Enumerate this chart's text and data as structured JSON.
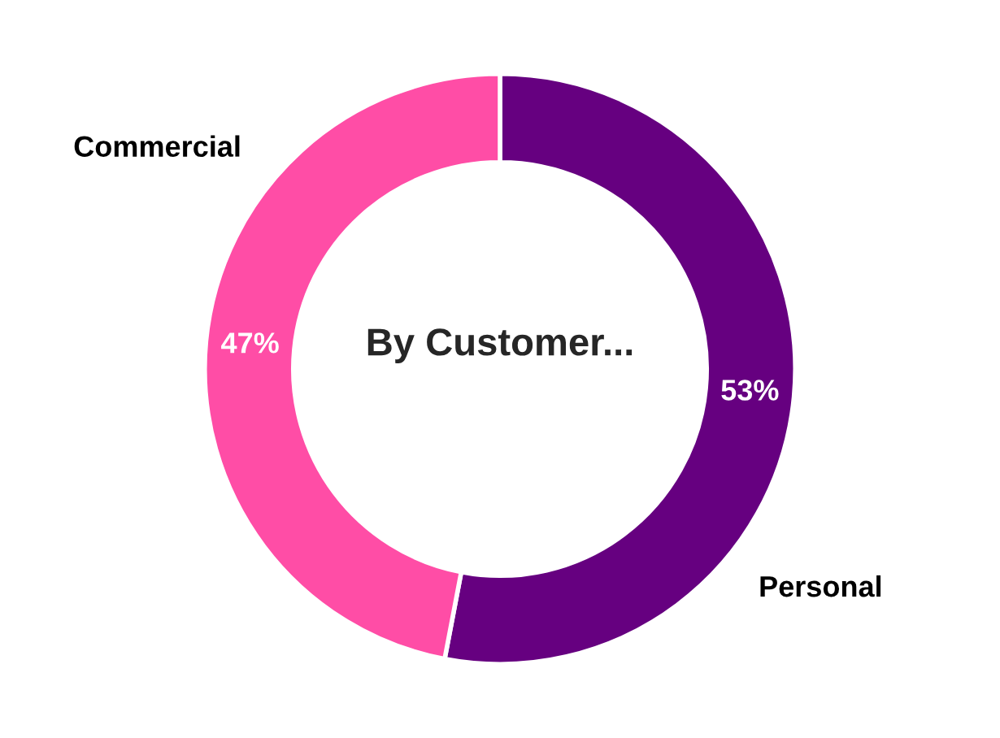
{
  "chart_data": {
    "type": "donut",
    "title": "By Customer...",
    "categories": [
      "Personal",
      "Commercial"
    ],
    "values": [
      53,
      47
    ],
    "colors": [
      "#660080",
      "#ff4da6"
    ],
    "value_labels": [
      "53%",
      "47%"
    ],
    "legend": false
  }
}
